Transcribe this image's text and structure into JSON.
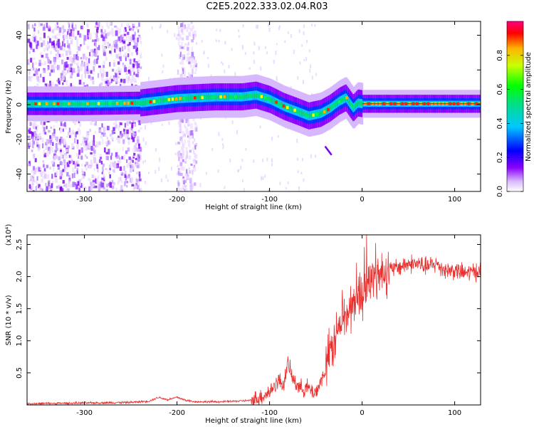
{
  "page": {
    "title": "C2E5.2022.333.02.04.R03"
  },
  "chart_data": [
    {
      "type": "heatmap",
      "title": "C2E5.2022.333.02.04.R03",
      "xlabel": "Height of straight line (km)",
      "ylabel": "Frequency (Hz)",
      "xlim": [
        -362,
        128
      ],
      "ylim": [
        -50,
        48
      ],
      "x_ticks": [
        -300,
        -200,
        -100,
        0,
        100
      ],
      "x_tick_labels": [
        "-300",
        "-200",
        "-100",
        "0",
        "100"
      ],
      "y_ticks": [
        -40,
        -20,
        0,
        20,
        40
      ],
      "y_tick_labels": [
        "-40",
        "-20",
        "0",
        "20",
        "40"
      ],
      "colorbar": {
        "label": "Normalized spectral amplitude",
        "range": [
          0,
          1
        ],
        "ticks": [
          0.0,
          0.2,
          0.4,
          0.6,
          0.8
        ],
        "tick_labels": [
          "0.0",
          "0.2",
          "0.4",
          "0.6",
          "0.8"
        ],
        "colormap": "rainbow (white-violet-blue-cyan-green-yellow-red)"
      },
      "ridge": {
        "x": [
          -362,
          -300,
          -240,
          -200,
          -160,
          -130,
          -115,
          -100,
          -85,
          -70,
          -58,
          -45,
          -35,
          -25,
          -18,
          -10,
          -5,
          0,
          50,
          128
        ],
        "y": [
          0.5,
          0.5,
          1,
          3.5,
          4.5,
          4.5,
          5.5,
          3,
          -1,
          -4,
          -6.5,
          -5,
          -2,
          2,
          4,
          -2,
          1,
          0.5,
          0.5,
          0.5
        ]
      },
      "noise_regions": [
        {
          "x": [
            -362,
            -240
          ],
          "level": "high"
        },
        {
          "x": [
            -200,
            -180
          ],
          "level": "medium"
        }
      ]
    },
    {
      "type": "line",
      "xlabel": "Height of straight line (km)",
      "ylabel": "SNR (10 * v/v)",
      "y_multiplier": "(x10⁴)",
      "xlim": [
        -362,
        128
      ],
      "ylim": [
        0,
        2.65
      ],
      "x_ticks": [
        -300,
        -200,
        -100,
        0,
        100
      ],
      "x_tick_labels": [
        "-300",
        "-200",
        "-100",
        "0",
        "100"
      ],
      "y_ticks": [
        0.5,
        1.0,
        1.5,
        2.0,
        2.5
      ],
      "y_tick_labels": [
        "0.5",
        "1.0",
        "1.5",
        "2.0",
        "2.5"
      ],
      "color": "#e8312f",
      "series": [
        {
          "x": [
            -362,
            -300,
            -250,
            -230,
            -220,
            -210,
            -200,
            -190,
            -180,
            -150,
            -120,
            -110,
            -100,
            -95,
            -90,
            -85,
            -80,
            -75,
            -70,
            -65,
            -60,
            -55,
            -50,
            -45,
            -40,
            -35,
            -30,
            -25,
            -20,
            -15,
            -10,
            -5,
            0,
            5,
            10,
            15,
            20,
            25,
            30,
            40,
            50,
            60,
            70,
            80,
            90,
            100,
            110,
            128
          ],
          "y": [
            0.02,
            0.03,
            0.04,
            0.06,
            0.12,
            0.08,
            0.12,
            0.07,
            0.05,
            0.05,
            0.07,
            0.12,
            0.2,
            0.3,
            0.38,
            0.32,
            0.65,
            0.4,
            0.32,
            0.25,
            0.28,
            0.22,
            0.2,
            0.35,
            0.55,
            0.8,
            1.0,
            1.2,
            1.35,
            1.45,
            1.55,
            1.7,
            1.75,
            1.85,
            1.95,
            2.0,
            2.05,
            2.1,
            2.1,
            2.15,
            2.2,
            2.2,
            2.15,
            2.2,
            2.1,
            2.1,
            2.05,
            2.1
          ]
        }
      ]
    }
  ]
}
